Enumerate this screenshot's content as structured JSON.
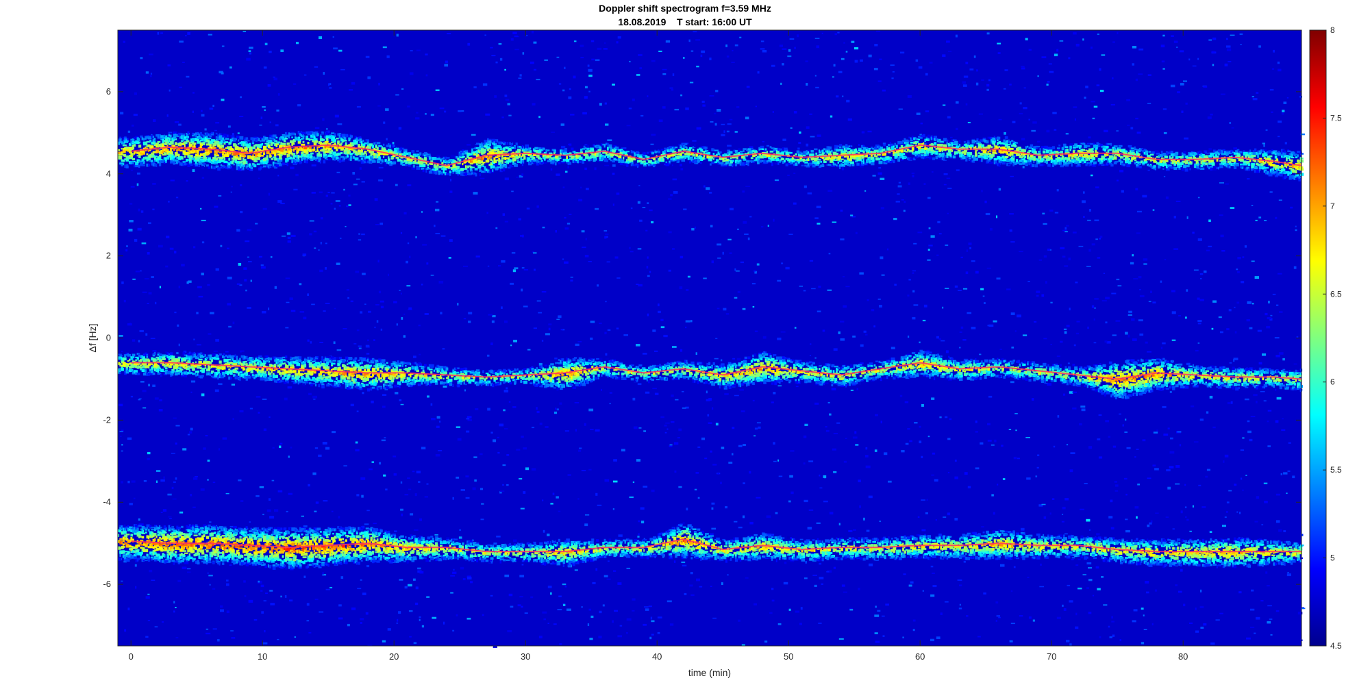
{
  "chart_data": {
    "type": "heatmap",
    "title": "Doppler shift spectrogram f=3.59 MHz",
    "subtitle": "18.08.2019    T start: 16:00 UT",
    "xlabel": "time (min)",
    "ylabel": "Δf [Hz]",
    "xlim": [
      -1,
      89
    ],
    "ylim": [
      -7.5,
      7.5
    ],
    "xticks": [
      0,
      10,
      20,
      30,
      40,
      50,
      60,
      70,
      80
    ],
    "yticks": [
      -6,
      -4,
      -2,
      0,
      2,
      4,
      6
    ],
    "colorbar": {
      "colormap": "jet",
      "range": [
        4.5,
        8
      ],
      "ticks": [
        4.5,
        5,
        5.5,
        6,
        6.5,
        7,
        7.5,
        8
      ]
    },
    "traces": [
      {
        "time": [
          0,
          3,
          6,
          9,
          12,
          15,
          18,
          21,
          24,
          27,
          30,
          33,
          36,
          39,
          42,
          45,
          48,
          51,
          54,
          57,
          60,
          63,
          66,
          69,
          72,
          75,
          78,
          81,
          84,
          87,
          89
        ],
        "df": [
          4.55,
          4.65,
          4.6,
          4.5,
          4.65,
          4.7,
          4.6,
          4.4,
          4.2,
          4.45,
          4.5,
          4.45,
          4.55,
          4.35,
          4.55,
          4.4,
          4.5,
          4.4,
          4.45,
          4.5,
          4.7,
          4.6,
          4.6,
          4.45,
          4.5,
          4.5,
          4.35,
          4.35,
          4.4,
          4.3,
          4.2
        ],
        "strength": [
          7.2,
          7.3,
          7.4,
          7.3,
          7.3,
          7.2,
          7.0,
          6.8,
          6.8,
          7.4,
          6.8,
          6.7,
          6.8,
          6.7,
          6.8,
          6.7,
          6.8,
          6.7,
          7.0,
          6.8,
          7.0,
          6.8,
          7.2,
          6.8,
          7.0,
          6.9,
          6.8,
          6.8,
          6.8,
          7.1,
          7.2
        ]
      },
      {
        "time": [
          0,
          3,
          6,
          9,
          12,
          15,
          18,
          21,
          24,
          27,
          30,
          33,
          36,
          39,
          42,
          45,
          48,
          51,
          54,
          57,
          60,
          63,
          66,
          69,
          72,
          75,
          78,
          81,
          84,
          87,
          89
        ],
        "df": [
          -0.6,
          -0.6,
          -0.65,
          -0.7,
          -0.75,
          -0.8,
          -0.85,
          -0.85,
          -0.9,
          -0.95,
          -0.9,
          -0.85,
          -0.7,
          -0.85,
          -0.75,
          -0.9,
          -0.7,
          -0.8,
          -0.9,
          -0.75,
          -0.6,
          -0.75,
          -0.7,
          -0.8,
          -0.9,
          -1.0,
          -0.85,
          -0.9,
          -0.95,
          -0.95,
          -1.0
        ],
        "strength": [
          6.9,
          7.0,
          7.0,
          7.0,
          7.1,
          7.2,
          7.3,
          7.0,
          6.8,
          6.7,
          6.7,
          7.3,
          6.8,
          6.7,
          6.8,
          7.0,
          7.3,
          6.9,
          6.9,
          6.8,
          7.1,
          6.9,
          6.8,
          6.8,
          6.8,
          7.5,
          7.3,
          6.9,
          6.9,
          6.8,
          6.9
        ]
      },
      {
        "time": [
          0,
          3,
          6,
          9,
          12,
          15,
          18,
          21,
          24,
          27,
          30,
          33,
          36,
          39,
          42,
          45,
          48,
          51,
          54,
          57,
          60,
          63,
          66,
          69,
          72,
          75,
          78,
          81,
          84,
          87,
          89
        ],
        "df": [
          -4.95,
          -5.0,
          -5.0,
          -5.05,
          -5.1,
          -5.05,
          -5.0,
          -5.1,
          -5.1,
          -5.2,
          -5.2,
          -5.2,
          -5.1,
          -5.1,
          -4.9,
          -5.15,
          -5.05,
          -5.15,
          -5.1,
          -5.1,
          -5.05,
          -5.05,
          -5.0,
          -5.05,
          -5.05,
          -5.15,
          -5.2,
          -5.2,
          -5.2,
          -5.2,
          -5.2
        ],
        "strength": [
          7.4,
          7.5,
          7.5,
          7.5,
          7.6,
          7.5,
          7.4,
          7.1,
          6.9,
          6.8,
          6.8,
          7.1,
          6.8,
          6.8,
          7.4,
          6.9,
          7.1,
          6.9,
          6.9,
          6.9,
          7.0,
          7.0,
          7.2,
          7.0,
          6.9,
          7.0,
          7.1,
          7.1,
          7.2,
          7.0,
          6.9
        ]
      }
    ]
  }
}
